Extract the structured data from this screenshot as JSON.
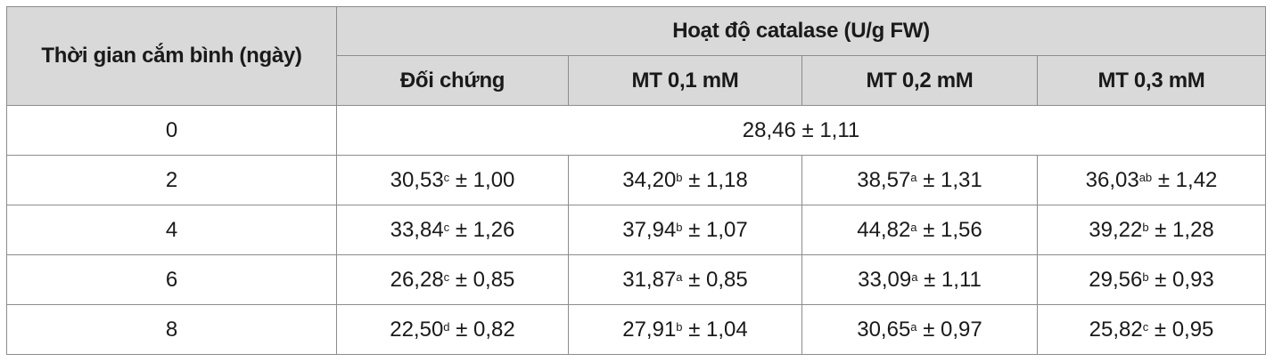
{
  "table": {
    "row_header": "Thời gian cắm bình (ngày)",
    "group_header": "Hoạt độ catalase (U/g FW)",
    "columns": [
      "Đối chứng",
      "MT 0,1 mM",
      "MT 0,2 mM",
      "MT 0,3 mM"
    ],
    "merged_row": {
      "day": "0",
      "value": "28,46 ± 1,11"
    },
    "rows": [
      {
        "day": "2",
        "cells": [
          {
            "mean": "30,53",
            "sup": "c",
            "sd": " ± 1,00"
          },
          {
            "mean": "34,20",
            "sup": "b",
            "sd": " ± 1,18"
          },
          {
            "mean": "38,57",
            "sup": "a",
            "sd": " ± 1,31"
          },
          {
            "mean": "36,03",
            "sup": "ab",
            "sd": " ± 1,42"
          }
        ]
      },
      {
        "day": "4",
        "cells": [
          {
            "mean": "33,84",
            "sup": "c",
            "sd": " ± 1,26"
          },
          {
            "mean": "37,94",
            "sup": "b",
            "sd": " ± 1,07"
          },
          {
            "mean": "44,82",
            "sup": "a",
            "sd": " ± 1,56"
          },
          {
            "mean": "39,22",
            "sup": "b",
            "sd": " ± 1,28"
          }
        ]
      },
      {
        "day": "6",
        "cells": [
          {
            "mean": "26,28",
            "sup": "c",
            "sd": " ± 0,85"
          },
          {
            "mean": "31,87",
            "sup": "a",
            "sd": " ± 0,85"
          },
          {
            "mean": "33,09",
            "sup": "a",
            "sd": " ± 1,11"
          },
          {
            "mean": "29,56",
            "sup": "b",
            "sd": " ± 0,93"
          }
        ]
      },
      {
        "day": "8",
        "cells": [
          {
            "mean": "22,50",
            "sup": "d",
            "sd": " ± 0,82"
          },
          {
            "mean": "27,91",
            "sup": "b",
            "sd": " ± 1,04"
          },
          {
            "mean": "30,65",
            "sup": "a",
            "sd": " ± 0,97"
          },
          {
            "mean": "25,82",
            "sup": "c",
            "sd": " ± 0,95"
          }
        ]
      }
    ]
  }
}
